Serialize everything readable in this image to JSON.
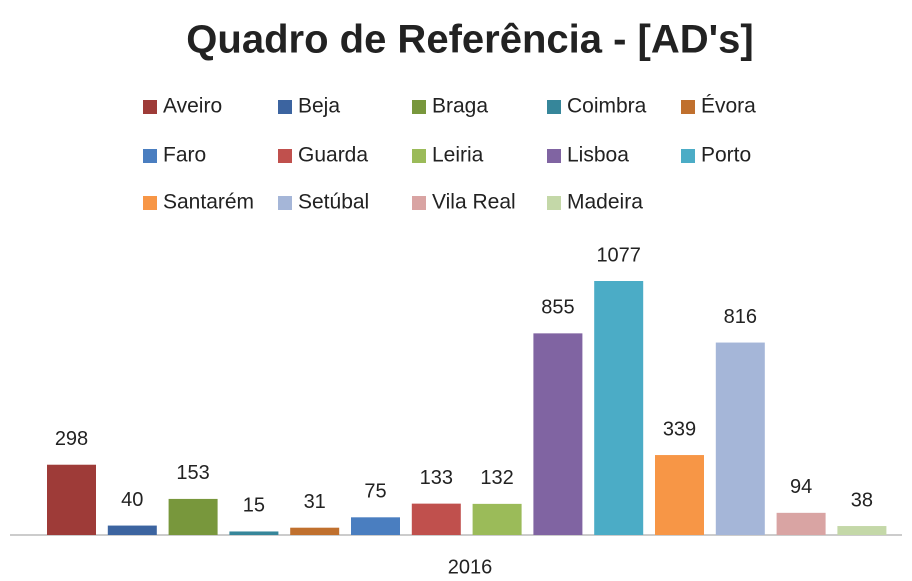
{
  "chart_data": {
    "type": "bar",
    "title": "Quadro de Referência  - [AD's]",
    "categories": [
      "2016"
    ],
    "series": [
      {
        "name": "Aveiro",
        "color": "#9e3b38",
        "values": [
          298
        ]
      },
      {
        "name": "Beja",
        "color": "#3c64a0",
        "values": [
          40
        ]
      },
      {
        "name": "Braga",
        "color": "#78973c",
        "values": [
          153
        ]
      },
      {
        "name": "Coimbra",
        "color": "#36869a",
        "values": [
          15
        ]
      },
      {
        "name": "Évora",
        "color": "#c0702e",
        "values": [
          31
        ]
      },
      {
        "name": "Faro",
        "color": "#4a7ec0",
        "values": [
          75
        ]
      },
      {
        "name": "Guarda",
        "color": "#c0504d",
        "values": [
          133
        ]
      },
      {
        "name": "Leiria",
        "color": "#9bbb59",
        "values": [
          132
        ]
      },
      {
        "name": "Lisboa",
        "color": "#8064a2",
        "values": [
          855
        ]
      },
      {
        "name": "Porto",
        "color": "#4bacc6",
        "values": [
          1077
        ]
      },
      {
        "name": "Santarém",
        "color": "#f79646",
        "values": [
          339
        ]
      },
      {
        "name": "Setúbal",
        "color": "#a5b6d8",
        "values": [
          816
        ]
      },
      {
        "name": "Vila Real",
        "color": "#d9a4a3",
        "values": [
          94
        ]
      },
      {
        "name": "Madeira",
        "color": "#c4d8a8",
        "values": [
          38
        ]
      }
    ]
  }
}
